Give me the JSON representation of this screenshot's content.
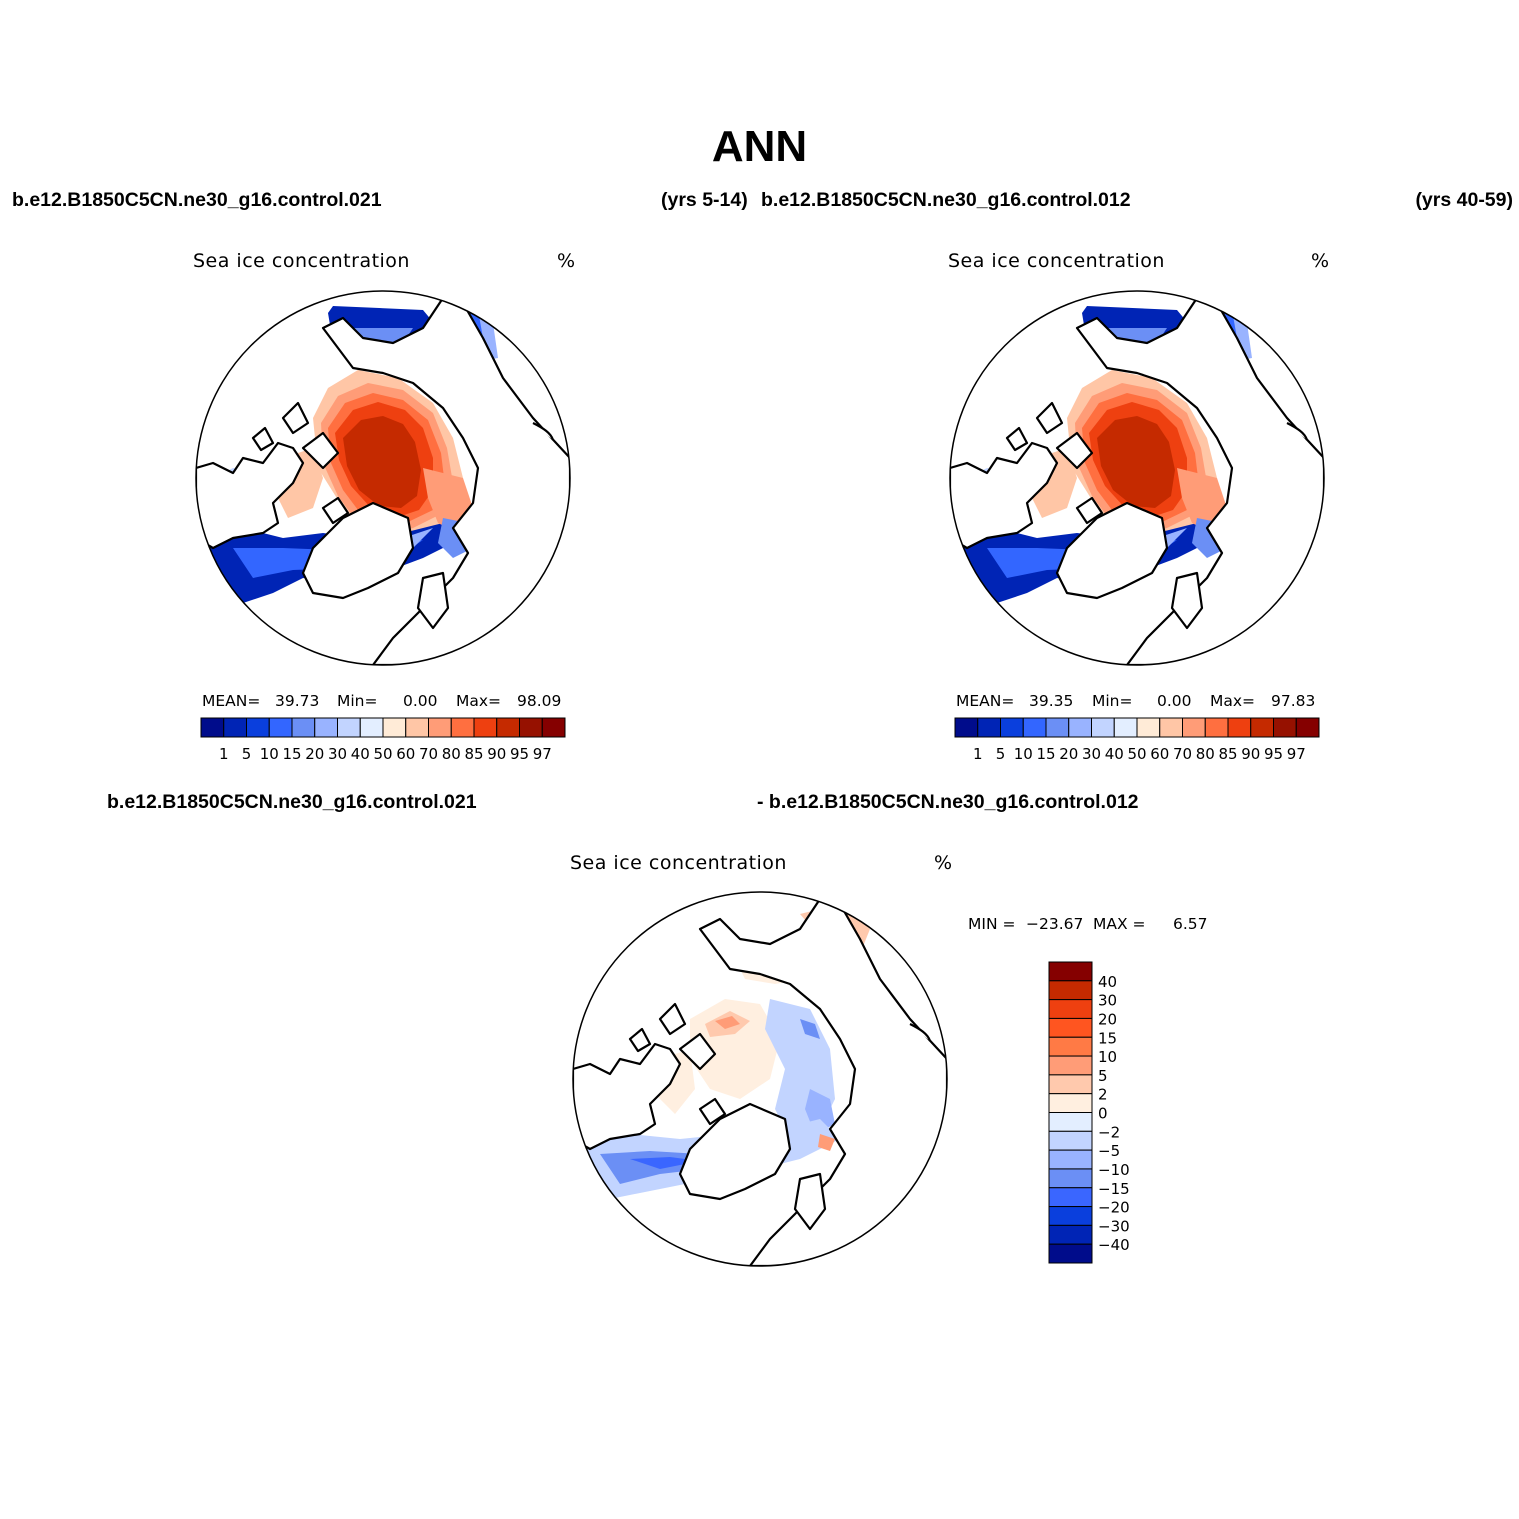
{
  "title": "ANN",
  "top_header": {
    "left_case": "b.e12.B1850C5CN.ne30_g16.control.021",
    "left_years": "(yrs 5-14)",
    "right_case": "b.e12.B1850C5CN.ne30_g16.control.012",
    "right_years": "(yrs 40-59)"
  },
  "diff_header": {
    "left": "b.e12.B1850C5CN.ne30_g16.control.021",
    "right": "- b.e12.B1850C5CN.ne30_g16.control.012"
  },
  "panels": [
    {
      "variable": "Sea ice concentration",
      "units": "%",
      "stats": {
        "mean_label": "MEAN=",
        "mean": "39.73",
        "min_label": "Min=",
        "min": "0.00",
        "max_label": "Max=",
        "max": "98.09"
      }
    },
    {
      "variable": "Sea ice concentration",
      "units": "%",
      "stats": {
        "mean_label": "MEAN=",
        "mean": "39.35",
        "min_label": "Min=",
        "min": "0.00",
        "max_label": "Max=",
        "max": "97.83"
      }
    },
    {
      "variable": "Sea ice concentration",
      "units": "%",
      "stats": {
        "min_label": "MIN =",
        "min": "−23.67",
        "max_label": "MAX =",
        "max": "6.57"
      }
    }
  ],
  "colorbar": {
    "levels": [
      "1",
      "5",
      "10",
      "15",
      "20",
      "30",
      "40",
      "50",
      "60",
      "70",
      "80",
      "85",
      "90",
      "95",
      "97"
    ],
    "colors": [
      "#000c8b",
      "#0024b5",
      "#0a3fdd",
      "#3366ff",
      "#6b8ff5",
      "#99b3ff",
      "#c2d4ff",
      "#e3eeff",
      "#ffebd7",
      "#ffc6a6",
      "#ff9c77",
      "#ff6f40",
      "#ee4010",
      "#c52a00",
      "#961100",
      "#850000"
    ]
  },
  "diff_colorbar": {
    "levels": [
      "40",
      "30",
      "20",
      "15",
      "10",
      "5",
      "2",
      "0",
      "−2",
      "−5",
      "−10",
      "−15",
      "−20",
      "−30",
      "−40"
    ],
    "colors": [
      "#850000",
      "#c52a00",
      "#ee4010",
      "#ff5520",
      "#ff7a45",
      "#ff9c77",
      "#ffc9ad",
      "#ffefe0",
      "#e3eeff",
      "#c2d4ff",
      "#99b3ff",
      "#6b8ff5",
      "#3a66ff",
      "#0a3fdd",
      "#0024b5",
      "#000c8b"
    ]
  }
}
